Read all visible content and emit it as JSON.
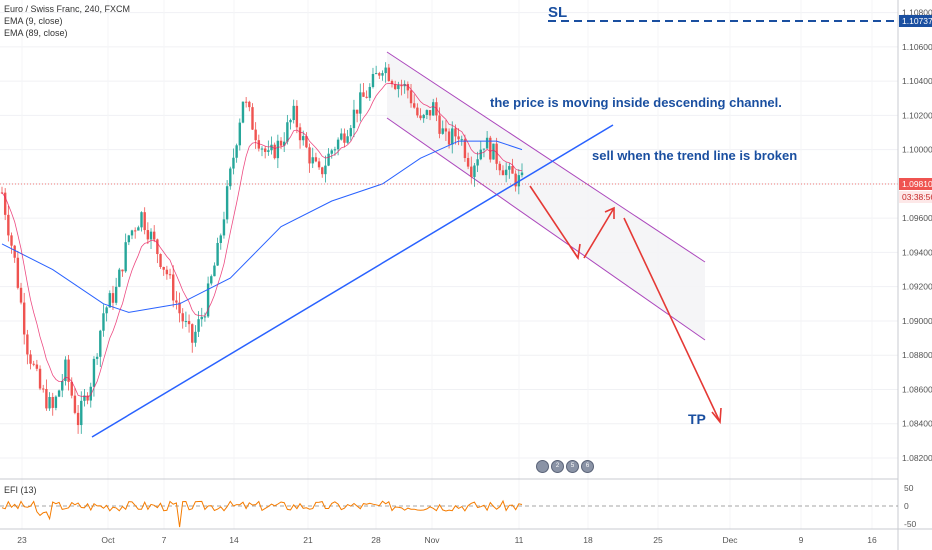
{
  "legend": {
    "symbol": "Euro / Swiss Franc, 240, FXCM",
    "ema9": "EMA (9, close)",
    "ema89": "EMA (89, close)"
  },
  "efi_label": "EFI (13)",
  "current_price": "1.09810",
  "countdown": "03:38:56",
  "sl_price": "1.10737",
  "annotations": {
    "sl": "SL",
    "tp": "TP",
    "note1": "the price is moving inside descending channel.",
    "note2": "sell when the trend line is broken"
  },
  "event_badges": [
    "2",
    "5",
    "6"
  ],
  "colors": {
    "up": "#26a69a",
    "down": "#ef5350",
    "ema9": "#e91e63",
    "ema89": "#2962ff",
    "trend": "#2962ff",
    "arrow": "#e53935",
    "text_blue": "#1a4fa0",
    "channel": "#ab47bc"
  },
  "chart_data": {
    "type": "candlestick",
    "title": "Euro / Swiss Franc, 240, FXCM",
    "y_ticks": [
      "1.10800",
      "1.10600",
      "1.10400",
      "1.10200",
      "1.10000",
      "1.09800",
      "1.09600",
      "1.09400",
      "1.09200",
      "1.09000",
      "1.08800",
      "1.08600",
      "1.08400",
      "1.08200"
    ],
    "x_ticks": [
      "23",
      "Oct",
      "7",
      "14",
      "21",
      "28",
      "Nov",
      "11",
      "18",
      "25",
      "Dec",
      "9",
      "16"
    ],
    "efi_ticks": [
      "50",
      "0",
      "-50"
    ],
    "ylim": [
      1.0813,
      1.1085
    ],
    "close_path": [
      {
        "d": 0,
        "c": 1.0975
      },
      {
        "d": 1,
        "c": 1.0935
      },
      {
        "d": 2,
        "c": 1.0885
      },
      {
        "d": 3,
        "c": 1.086
      },
      {
        "d": 4,
        "c": 1.0848
      },
      {
        "d": 5,
        "c": 1.0872
      },
      {
        "d": 6,
        "c": 1.0842
      },
      {
        "d": 7,
        "c": 1.0865
      },
      {
        "d": 8,
        "c": 1.0905
      },
      {
        "d": 9,
        "c": 1.0918
      },
      {
        "d": 10,
        "c": 1.095
      },
      {
        "d": 11,
        "c": 1.0962
      },
      {
        "d": 12,
        "c": 1.0945
      },
      {
        "d": 13,
        "c": 1.0928
      },
      {
        "d": 14,
        "c": 1.0905
      },
      {
        "d": 15,
        "c": 1.0888
      },
      {
        "d": 16,
        "c": 1.0908
      },
      {
        "d": 17,
        "c": 1.094
      },
      {
        "d": 18,
        "c": 1.0985
      },
      {
        "d": 19,
        "c": 1.103
      },
      {
        "d": 20,
        "c": 1.101
      },
      {
        "d": 21,
        "c": 1.0995
      },
      {
        "d": 22,
        "c": 1.1005
      },
      {
        "d": 23,
        "c": 1.102
      },
      {
        "d": 24,
        "c": 1.1
      },
      {
        "d": 25,
        "c": 1.0985
      },
      {
        "d": 26,
        "c": 1.1
      },
      {
        "d": 27,
        "c": 1.101
      },
      {
        "d": 28,
        "c": 1.1025
      },
      {
        "d": 29,
        "c": 1.1035
      },
      {
        "d": 30,
        "c": 1.105
      },
      {
        "d": 31,
        "c": 1.104
      },
      {
        "d": 32,
        "c": 1.1035
      },
      {
        "d": 33,
        "c": 1.1015
      },
      {
        "d": 34,
        "c": 1.1025
      },
      {
        "d": 35,
        "c": 1.1005
      },
      {
        "d": 36,
        "c": 1.101
      },
      {
        "d": 37,
        "c": 1.099
      },
      {
        "d": 38,
        "c": 1.1005
      },
      {
        "d": 39,
        "c": 1.0995
      },
      {
        "d": 40,
        "c": 1.0985
      },
      {
        "d": 41,
        "c": 1.0981
      }
    ],
    "ema89_path": [
      {
        "d": 0,
        "v": 1.0945
      },
      {
        "d": 4,
        "v": 1.093
      },
      {
        "d": 8,
        "v": 1.091
      },
      {
        "d": 10,
        "v": 1.0905
      },
      {
        "d": 14,
        "v": 1.091
      },
      {
        "d": 18,
        "v": 1.0925
      },
      {
        "d": 22,
        "v": 1.0955
      },
      {
        "d": 26,
        "v": 1.097
      },
      {
        "d": 30,
        "v": 1.098
      },
      {
        "d": 33,
        "v": 1.0995
      },
      {
        "d": 36,
        "v": 1.1005
      },
      {
        "d": 39,
        "v": 1.1005
      },
      {
        "d": 41,
        "v": 1.1
      }
    ]
  }
}
